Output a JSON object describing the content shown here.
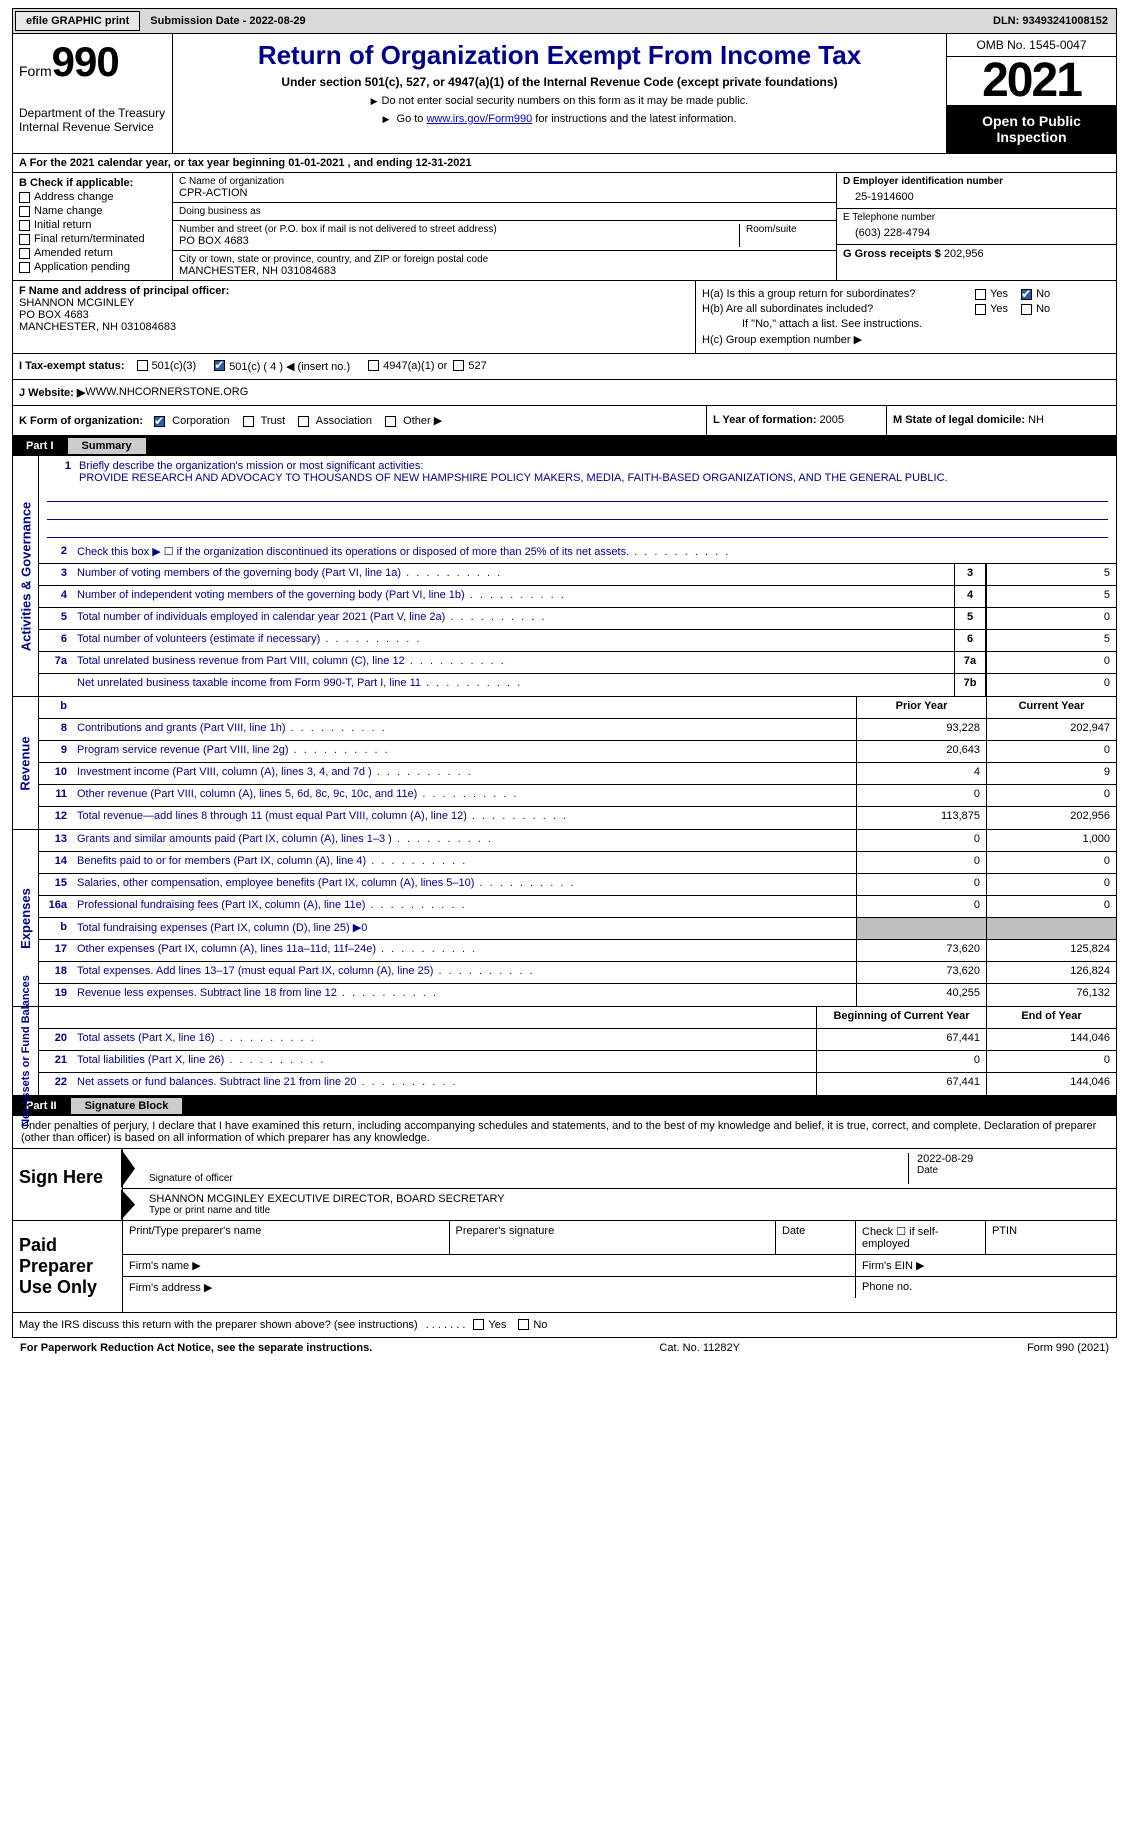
{
  "topbar": {
    "efile": "efile GRAPHIC print",
    "subdate_lbl": "Submission Date - ",
    "subdate": "2022-08-29",
    "dln_lbl": "DLN: ",
    "dln": "93493241008152"
  },
  "header": {
    "form_word": "Form",
    "form_num": "990",
    "dept": "Department of the Treasury",
    "irs": "Internal Revenue Service",
    "title": "Return of Organization Exempt From Income Tax",
    "sub": "Under section 501(c), 527, or 4947(a)(1) of the Internal Revenue Code (except private foundations)",
    "note1": "Do not enter social security numbers on this form as it may be made public.",
    "note2_pre": "Go to ",
    "note2_link": "www.irs.gov/Form990",
    "note2_post": " for instructions and the latest information.",
    "omb": "OMB No. 1545-0047",
    "year": "2021",
    "inspect": "Open to Public Inspection"
  },
  "lineA": "A  For the 2021 calendar year, or tax year beginning 01-01-2021    , and ending 12-31-2021",
  "boxB": {
    "label": "B Check if applicable:",
    "opts": [
      "Address change",
      "Name change",
      "Initial return",
      "Final return/terminated",
      "Amended return",
      "Application pending"
    ]
  },
  "boxC": {
    "name_lbl": "C Name of organization",
    "name": "CPR-ACTION",
    "dba_lbl": "Doing business as",
    "addr_lbl": "Number and street (or P.O. box if mail is not delivered to street address)",
    "room_lbl": "Room/suite",
    "addr": "PO BOX 4683",
    "city_lbl": "City or town, state or province, country, and ZIP or foreign postal code",
    "city": "MANCHESTER, NH   031084683"
  },
  "boxD": {
    "lbl": "D Employer identification number",
    "val": "25-1914600"
  },
  "boxE": {
    "lbl": "E Telephone number",
    "val": "(603) 228-4794"
  },
  "boxG": {
    "lbl": "G Gross receipts $ ",
    "val": "202,956"
  },
  "boxF": {
    "lbl": "F  Name and address of principal officer:",
    "l1": "SHANNON MCGINLEY",
    "l2": "PO BOX 4683",
    "l3": "MANCHESTER, NH   031084683"
  },
  "boxH": {
    "a": "H(a)  Is this a group return for subordinates?",
    "b": "H(b)  Are all subordinates included?",
    "b2": "If \"No,\" attach a list. See instructions.",
    "c": "H(c)  Group exemption number ▶",
    "yes": "Yes",
    "no": "No"
  },
  "boxI": {
    "lbl": "I    Tax-exempt status:",
    "o1": "501(c)(3)",
    "o2": "501(c) ( 4 ) ◀ (insert no.)",
    "o3": "4947(a)(1) or",
    "o4": "527"
  },
  "boxJ": {
    "lbl": "J   Website: ▶  ",
    "val": "WWW.NHCORNERSTONE.ORG"
  },
  "boxK": {
    "lbl": "K Form of organization:",
    "o": [
      "Corporation",
      "Trust",
      "Association",
      "Other ▶"
    ]
  },
  "boxL": {
    "lbl": "L Year of formation: ",
    "val": "2005"
  },
  "boxM": {
    "lbl": "M State of legal domicile: ",
    "val": "NH"
  },
  "part1": {
    "num": "Part I",
    "title": "Summary"
  },
  "mission": {
    "lbl": "Briefly describe the organization's mission or most significant activities:",
    "txt": "PROVIDE RESEARCH AND ADVOCACY TO THOUSANDS OF NEW HAMPSHIRE POLICY MAKERS, MEDIA, FAITH-BASED ORGANIZATIONS, AND THE GENERAL PUBLIC."
  },
  "gov_lines": [
    {
      "n": "2",
      "d": "Check this box ▶ ☐  if the organization discontinued its operations or disposed of more than 25% of its net assets."
    },
    {
      "n": "3",
      "d": "Number of voting members of the governing body (Part VI, line 1a)",
      "box": "3",
      "v": "5"
    },
    {
      "n": "4",
      "d": "Number of independent voting members of the governing body (Part VI, line 1b)",
      "box": "4",
      "v": "5"
    },
    {
      "n": "5",
      "d": "Total number of individuals employed in calendar year 2021 (Part V, line 2a)",
      "box": "5",
      "v": "0"
    },
    {
      "n": "6",
      "d": "Total number of volunteers (estimate if necessary)",
      "box": "6",
      "v": "5"
    },
    {
      "n": "7a",
      "d": "Total unrelated business revenue from Part VIII, column (C), line 12",
      "box": "7a",
      "v": "0"
    },
    {
      "n": "",
      "d": "Net unrelated business taxable income from Form 990-T, Part I, line 11",
      "box": "7b",
      "v": "0"
    }
  ],
  "py_cy_hdr": {
    "py": "Prior Year",
    "cy": "Current Year"
  },
  "rev_lines": [
    {
      "n": "8",
      "d": "Contributions and grants (Part VIII, line 1h)",
      "py": "93,228",
      "cy": "202,947"
    },
    {
      "n": "9",
      "d": "Program service revenue (Part VIII, line 2g)",
      "py": "20,643",
      "cy": "0"
    },
    {
      "n": "10",
      "d": "Investment income (Part VIII, column (A), lines 3, 4, and 7d )",
      "py": "4",
      "cy": "9"
    },
    {
      "n": "11",
      "d": "Other revenue (Part VIII, column (A), lines 5, 6d, 8c, 9c, 10c, and 11e)",
      "py": "0",
      "cy": "0"
    },
    {
      "n": "12",
      "d": "Total revenue—add lines 8 through 11 (must equal Part VIII, column (A), line 12)",
      "py": "113,875",
      "cy": "202,956"
    }
  ],
  "exp_lines": [
    {
      "n": "13",
      "d": "Grants and similar amounts paid (Part IX, column (A), lines 1–3 )",
      "py": "0",
      "cy": "1,000"
    },
    {
      "n": "14",
      "d": "Benefits paid to or for members (Part IX, column (A), line 4)",
      "py": "0",
      "cy": "0"
    },
    {
      "n": "15",
      "d": "Salaries, other compensation, employee benefits (Part IX, column (A), lines 5–10)",
      "py": "0",
      "cy": "0"
    },
    {
      "n": "16a",
      "d": "Professional fundraising fees (Part IX, column (A), line 11e)",
      "py": "0",
      "cy": "0"
    },
    {
      "n": "b",
      "d": "Total fundraising expenses (Part IX, column (D), line 25) ▶0",
      "gray": true
    },
    {
      "n": "17",
      "d": "Other expenses (Part IX, column (A), lines 11a–11d, 11f–24e)",
      "py": "73,620",
      "cy": "125,824"
    },
    {
      "n": "18",
      "d": "Total expenses. Add lines 13–17 (must equal Part IX, column (A), line 25)",
      "py": "73,620",
      "cy": "126,824"
    },
    {
      "n": "19",
      "d": "Revenue less expenses. Subtract line 18 from line 12",
      "py": "40,255",
      "cy": "76,132"
    }
  ],
  "na_hdr": {
    "b": "Beginning of Current Year",
    "e": "End of Year"
  },
  "na_lines": [
    {
      "n": "20",
      "d": "Total assets (Part X, line 16)",
      "py": "67,441",
      "cy": "144,046"
    },
    {
      "n": "21",
      "d": "Total liabilities (Part X, line 26)",
      "py": "0",
      "cy": "0"
    },
    {
      "n": "22",
      "d": "Net assets or fund balances. Subtract line 21 from line 20",
      "py": "67,441",
      "cy": "144,046"
    }
  ],
  "vside": {
    "gov": "Activities & Governance",
    "rev": "Revenue",
    "exp": "Expenses",
    "na": "Net Assets or\nFund Balances"
  },
  "part2": {
    "num": "Part II",
    "title": "Signature Block"
  },
  "penalties": "Under penalties of perjury, I declare that I have examined this return, including accompanying schedules and statements, and to the best of my knowledge and belief, it is true, correct, and complete. Declaration of preparer (other than officer) is based on all information of which preparer has any knowledge.",
  "sign": {
    "lbl": "Sign Here",
    "sig_lbl": "Signature of officer",
    "date_lbl": "Date",
    "date": "2022-08-29",
    "name": "SHANNON MCGINLEY  EXECUTIVE DIRECTOR, BOARD SECRETARY",
    "name_lbl": "Type or print name and title"
  },
  "paid": {
    "lbl": "Paid Preparer Use Only",
    "h": [
      "Print/Type preparer's name",
      "Preparer's signature",
      "Date",
      "Check ☐ if self-employed",
      "PTIN"
    ],
    "firm_name": "Firm's name    ▶",
    "firm_ein": "Firm's EIN ▶",
    "firm_addr": "Firm's address ▶",
    "phone": "Phone no."
  },
  "discuss": "May the IRS discuss this return with the preparer shown above? (see instructions)",
  "footer": {
    "l": "For Paperwork Reduction Act Notice, see the separate instructions.",
    "m": "Cat. No. 11282Y",
    "r": "Form 990 (2021)"
  }
}
